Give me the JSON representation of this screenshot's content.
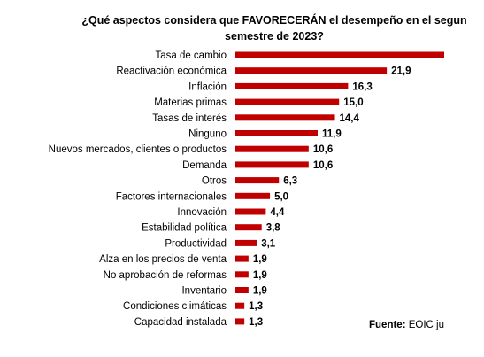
{
  "title": "¿Qué aspectos considera que FAVORECERÁN el desempeño en el segun semestre de 2023?",
  "source": {
    "label": "Fuente:",
    "text": "EOIC ju"
  },
  "chart_data": {
    "type": "bar",
    "orientation": "horizontal",
    "title": "¿Qué aspectos considera que FAVORECERÁN el desempeño en el segun semestre de 2023?",
    "bar_color": "#c00000",
    "categories": [
      "Tasa de cambio",
      "Reactivación económica",
      "Inflación",
      "Materias primas",
      "Tasas de interés",
      "Ninguno",
      "Nuevos mercados, clientes o productos",
      "Demanda",
      "Otros",
      "Factores internacionales",
      "Innovación",
      "Estabilidad política",
      "Productividad",
      "Alza en los precios de venta",
      "No aprobación de reformas",
      "Inventario",
      "Condiciones climáticas",
      "Capacidad instalada"
    ],
    "values": [
      30.2,
      21.9,
      16.3,
      15.0,
      14.4,
      11.9,
      10.6,
      10.6,
      6.3,
      5.0,
      4.4,
      3.8,
      3.1,
      1.9,
      1.9,
      1.9,
      1.3,
      1.3
    ],
    "value_labels": [
      "",
      "21,9",
      "16,3",
      "15,0",
      "14,4",
      "11,9",
      "10,6",
      "10,6",
      "6,3",
      "5,0",
      "4,4",
      "3,8",
      "3,1",
      "1,9",
      "1,9",
      "1,9",
      "1,3",
      "1,3"
    ],
    "xlabel": "",
    "ylabel": "",
    "xlim": [
      0,
      30.2
    ],
    "grid": false,
    "legend": "none"
  }
}
